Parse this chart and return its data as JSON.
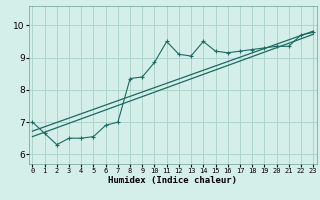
{
  "title": "",
  "xlabel": "Humidex (Indice chaleur)",
  "bg_color": "#d4eeea",
  "grid_color": "#aed4ce",
  "line_color": "#1a6b60",
  "xticks": [
    0,
    1,
    2,
    3,
    4,
    5,
    6,
    7,
    8,
    9,
    10,
    11,
    12,
    13,
    14,
    15,
    16,
    17,
    18,
    19,
    20,
    21,
    22,
    23
  ],
  "yticks": [
    6,
    7,
    8,
    9,
    10
  ],
  "xlim": [
    -0.3,
    23.3
  ],
  "ylim": [
    5.7,
    10.6
  ],
  "series1_x": [
    0,
    1,
    2,
    3,
    4,
    5,
    6,
    7,
    8,
    9,
    10,
    11,
    12,
    13,
    14,
    15,
    16,
    17,
    18,
    19,
    20,
    21,
    22,
    23
  ],
  "series1_y": [
    7.0,
    6.65,
    6.3,
    6.5,
    6.5,
    6.55,
    6.9,
    7.0,
    8.35,
    8.4,
    8.85,
    9.5,
    9.1,
    9.05,
    9.5,
    9.2,
    9.15,
    9.2,
    9.25,
    9.3,
    9.35,
    9.35,
    9.7,
    9.78
  ],
  "series2_x": [
    0,
    23
  ],
  "series2_y": [
    6.55,
    9.72
  ],
  "series3_x": [
    0,
    23
  ],
  "series3_y": [
    6.72,
    9.82
  ]
}
